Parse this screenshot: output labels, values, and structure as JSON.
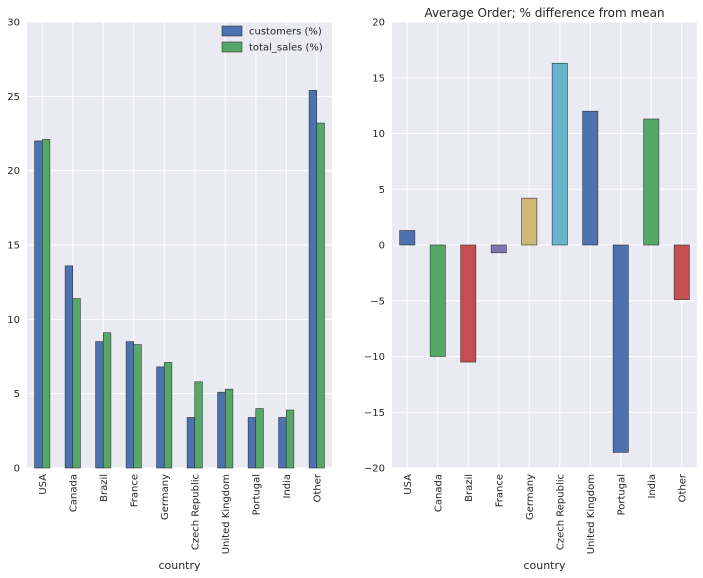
{
  "chart_data": [
    {
      "type": "bar",
      "title": "",
      "xlabel": "country",
      "ylabel": "",
      "ylim": [
        0,
        30
      ],
      "yticks": [
        0,
        5,
        10,
        15,
        20,
        25,
        30
      ],
      "categories": [
        "USA",
        "Canada",
        "Brazil",
        "France",
        "Germany",
        "Czech Republic",
        "United Kingdom",
        "Portugal",
        "India",
        "Other"
      ],
      "series": [
        {
          "name": "customers (%)",
          "color": "#4c72b0",
          "values": [
            22.0,
            13.6,
            8.5,
            8.5,
            6.8,
            3.4,
            5.1,
            3.4,
            3.4,
            25.4
          ]
        },
        {
          "name": "total_sales (%)",
          "color": "#55a868",
          "values": [
            22.1,
            11.4,
            9.1,
            8.3,
            7.1,
            5.8,
            5.3,
            4.0,
            3.9,
            23.2
          ]
        }
      ],
      "legend": "top-right",
      "grid": true
    },
    {
      "type": "bar",
      "title": "Average Order; % difference from mean",
      "xlabel": "country",
      "ylabel": "",
      "ylim": [
        -20,
        20
      ],
      "yticks": [
        -20,
        -15,
        -10,
        -5,
        0,
        5,
        10,
        15,
        20
      ],
      "ytick_labels": [
        "−20",
        "−15",
        "−10",
        "−5",
        "0",
        "5",
        "10",
        "15",
        "20"
      ],
      "categories": [
        "USA",
        "Canada",
        "Brazil",
        "France",
        "Germany",
        "Czech Republic",
        "United Kingdom",
        "Portugal",
        "India",
        "Other"
      ],
      "values": [
        1.3,
        -10.0,
        -10.5,
        -0.7,
        4.2,
        16.3,
        12.0,
        -18.6,
        11.3,
        -4.9
      ],
      "colors": [
        "#4c72b0",
        "#55a868",
        "#c44e52",
        "#8172b2",
        "#ccb974",
        "#64b5cd",
        "#4c72b0",
        "#4c72b0",
        "#55a868",
        "#c44e52"
      ],
      "grid": true
    }
  ]
}
